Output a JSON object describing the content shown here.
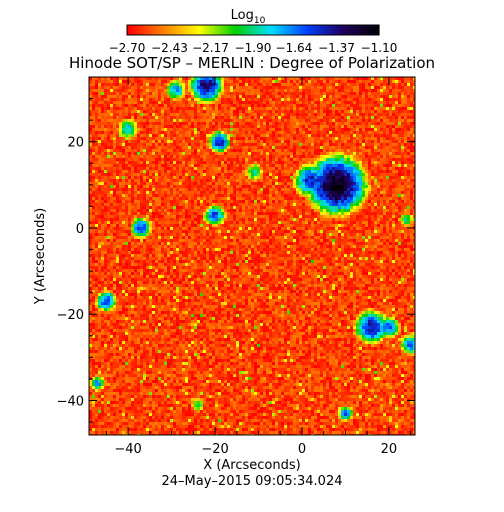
{
  "chart_data": {
    "type": "heatmap",
    "title": "Hinode SOT/SP – MERLIN : Degree of Polarization",
    "xlabel": "X (Arcseconds)",
    "ylabel": "Y (Arcseconds)",
    "xlim": [
      -49,
      26
    ],
    "ylim": [
      -48,
      35
    ],
    "x_ticks": [
      -40,
      -20,
      0,
      20
    ],
    "y_ticks": [
      -40,
      -20,
      0,
      20
    ],
    "x_tick_labels": [
      "−40",
      "−20",
      "0",
      "20"
    ],
    "y_tick_labels": [
      "−40",
      "−20",
      "0",
      "20"
    ],
    "colorbar": {
      "title": "Log",
      "title_subscript": "10",
      "ticks": [
        -2.7,
        -2.43,
        -2.17,
        -1.9,
        -1.64,
        -1.37,
        -1.1
      ],
      "tick_labels": [
        "−2.70",
        "−2.43",
        "−2.17",
        "−1.90",
        "−1.64",
        "−1.37",
        "−1.10"
      ],
      "range": [
        -2.7,
        -1.1
      ],
      "colormap": [
        "#ff0000",
        "#ff8000",
        "#ffff00",
        "#00d000",
        "#00e0ff",
        "#0040ff",
        "#200060",
        "#000000"
      ]
    },
    "grid": false,
    "features": [
      {
        "x": 8,
        "y": 10,
        "r": 5,
        "peak": -1.15
      },
      {
        "x": 2,
        "y": 11,
        "r": 3,
        "peak": -1.45
      },
      {
        "x": -22,
        "y": 33,
        "r": 3,
        "peak": -1.35
      },
      {
        "x": -29,
        "y": 32,
        "r": 2,
        "peak": -1.7
      },
      {
        "x": -40,
        "y": 23,
        "r": 2,
        "peak": -1.75
      },
      {
        "x": -19,
        "y": 20,
        "r": 2,
        "peak": -1.45
      },
      {
        "x": -20,
        "y": 3,
        "r": 2,
        "peak": -1.55
      },
      {
        "x": -37,
        "y": 0,
        "r": 2,
        "peak": -1.55
      },
      {
        "x": -45,
        "y": -17,
        "r": 2,
        "peak": -1.55
      },
      {
        "x": 16,
        "y": -23,
        "r": 3,
        "peak": -1.4
      },
      {
        "x": 20,
        "y": -23,
        "r": 2,
        "peak": -1.55
      },
      {
        "x": 25,
        "y": -27,
        "r": 2,
        "peak": -1.6
      },
      {
        "x": 10,
        "y": -43,
        "r": 1.5,
        "peak": -1.6
      },
      {
        "x": -11,
        "y": 13,
        "r": 2,
        "peak": -1.9
      },
      {
        "x": -47,
        "y": -36,
        "r": 1.5,
        "peak": -1.7
      },
      {
        "x": -24,
        "y": -41,
        "r": 1.5,
        "peak": -1.95
      },
      {
        "x": 24,
        "y": 2,
        "r": 1.5,
        "peak": -1.9
      }
    ]
  },
  "footer": {
    "timestamp": "24–May–2015 09:05:34.024"
  }
}
